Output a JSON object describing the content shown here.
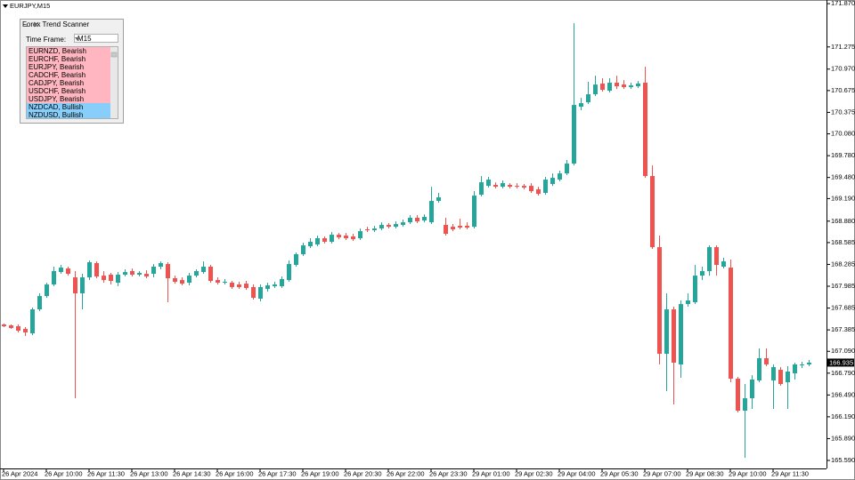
{
  "symbol_label": "EURJPY,M15",
  "chart_data": {
    "type": "candlestick",
    "categories": [
      "26 Apr 2024",
      null,
      null,
      null,
      null,
      null,
      "26 Apr 10:00",
      null,
      null,
      null,
      null,
      null,
      "26 Apr 11:30",
      null,
      null,
      null,
      null,
      null,
      "26 Apr 13:00",
      null,
      null,
      null,
      null,
      null,
      "26 Apr 14:30",
      null,
      null,
      null,
      null,
      null,
      "26 Apr 16:00",
      null,
      null,
      null,
      null,
      null,
      "26 Apr 17:30",
      null,
      null,
      null,
      null,
      null,
      "26 Apr 19:00",
      null,
      null,
      null,
      null,
      null,
      "26 Apr 20:30",
      null,
      null,
      null,
      null,
      null,
      "26 Apr 22:00",
      null,
      null,
      null,
      null,
      null,
      "26 Apr 23:30",
      null,
      null,
      null,
      null,
      null,
      "29 Apr 01:00",
      null,
      null,
      null,
      null,
      null,
      "29 Apr 02:30",
      null,
      null,
      null,
      null,
      null,
      "29 Apr 04:00",
      null,
      null,
      null,
      null,
      null,
      "29 Apr 05:30",
      null,
      null,
      null,
      null,
      null,
      "29 Apr 07:00",
      null,
      null,
      null,
      null,
      null,
      "29 Apr 08:30",
      null,
      null,
      null,
      null,
      null,
      "29 Apr 10:00",
      null,
      null,
      null,
      null,
      null,
      "29 Apr 11:30",
      null,
      null,
      null,
      null,
      null
    ],
    "open": [
      167.459,
      167.447,
      167.435,
      167.398,
      167.337,
      167.667,
      167.85,
      168.009,
      168.18,
      168.229,
      168.107,
      167.887,
      168.107,
      168.303,
      168.131,
      168.144,
      168.034,
      168.144,
      168.193,
      168.144,
      168.156,
      168.156,
      168.254,
      168.29,
      168.095,
      168.07,
      168.034,
      168.131,
      168.18,
      168.254,
      168.07,
      168.034,
      168.034,
      168.009,
      168.021,
      167.973,
      167.814,
      167.948,
      167.985,
      167.985,
      168.07,
      168.278,
      168.425,
      168.535,
      168.559,
      168.645,
      168.596,
      168.693,
      168.681,
      168.669,
      168.645,
      168.767,
      168.755,
      168.779,
      168.828,
      168.803,
      168.828,
      168.864,
      168.926,
      168.889,
      168.864,
      169.158,
      168.828,
      168.803,
      168.816,
      168.816,
      168.803,
      169.243,
      169.365,
      169.378,
      169.353,
      169.378,
      169.365,
      169.365,
      169.365,
      169.317,
      169.268,
      169.39,
      169.451,
      169.536,
      169.671,
      170.453,
      170.514,
      170.624,
      170.771,
      170.673,
      170.783,
      170.758,
      170.722,
      170.734,
      170.783,
      169.5,
      168.522,
      167.056,
      167.667,
      166.91,
      167.74,
      167.765,
      168.131,
      168.193,
      168.522,
      168.254,
      168.241,
      166.714,
      166.274,
      166.445,
      166.69,
      166.995,
      166.69,
      166.836,
      166.665,
      166.787,
      166.91,
      166.91
    ],
    "high": [
      167.472,
      167.459,
      167.459,
      167.423,
      167.692,
      167.887,
      168.034,
      168.254,
      168.278,
      168.254,
      168.193,
      168.156,
      168.339,
      168.327,
      168.193,
      168.168,
      168.18,
      168.217,
      168.229,
      168.193,
      168.205,
      168.29,
      168.327,
      168.315,
      168.131,
      168.107,
      168.168,
      168.217,
      168.327,
      168.278,
      168.107,
      168.083,
      168.058,
      168.046,
      168.058,
      168.009,
      168.009,
      168.034,
      168.046,
      168.119,
      168.339,
      168.449,
      168.584,
      168.645,
      168.681,
      168.669,
      168.73,
      168.718,
      168.718,
      168.706,
      168.779,
      168.803,
      168.816,
      168.864,
      168.852,
      168.877,
      168.901,
      168.962,
      168.962,
      168.974,
      169.353,
      169.268,
      168.926,
      168.84,
      168.913,
      168.864,
      169.292,
      169.5,
      169.488,
      169.414,
      169.439,
      169.402,
      169.402,
      169.39,
      169.402,
      169.353,
      169.488,
      169.536,
      169.573,
      169.72,
      171.601,
      170.575,
      170.795,
      170.88,
      170.844,
      170.844,
      170.88,
      170.819,
      170.783,
      170.807,
      171.003,
      169.646,
      168.681,
      167.887,
      167.704,
      167.789,
      167.887,
      168.278,
      168.254,
      168.547,
      168.547,
      168.376,
      168.351,
      166.739,
      166.641,
      166.763,
      167.13,
      167.13,
      166.91,
      166.873,
      166.885,
      166.934,
      166.946,
      166.971
    ],
    "low": [
      167.423,
      167.398,
      167.35,
      167.301,
      167.313,
      167.643,
      167.826,
      167.985,
      168.156,
      168.131,
      166.445,
      167.667,
      168.07,
      168.095,
      168.034,
      168.009,
      167.985,
      168.119,
      168.119,
      168.119,
      168.095,
      168.107,
      168.217,
      167.765,
      168.021,
      167.997,
      167.997,
      168.107,
      168.156,
      168.034,
      168.009,
      168.009,
      167.948,
      167.948,
      167.936,
      167.802,
      167.777,
      167.911,
      167.96,
      167.96,
      168.046,
      168.254,
      168.4,
      168.51,
      168.535,
      168.571,
      168.571,
      168.632,
      168.62,
      168.608,
      168.62,
      168.73,
      168.73,
      168.755,
      168.779,
      168.779,
      168.803,
      168.84,
      168.852,
      168.864,
      168.84,
      169.133,
      168.681,
      168.742,
      168.767,
      168.767,
      168.779,
      169.219,
      169.341,
      169.329,
      169.329,
      169.329,
      169.329,
      169.317,
      169.268,
      169.231,
      169.243,
      169.365,
      169.427,
      169.512,
      169.646,
      170.404,
      170.49,
      170.599,
      170.661,
      170.648,
      170.697,
      170.697,
      170.697,
      170.709,
      169.475,
      168.498,
      166.91,
      166.543,
      166.36,
      166.726,
      167.704,
      167.74,
      168.07,
      168.131,
      168.131,
      168.229,
      166.665,
      166.25,
      165.627,
      166.299,
      166.665,
      166.885,
      166.299,
      166.616,
      166.299,
      166.702,
      166.861,
      166.885
    ],
    "close": [
      167.435,
      167.411,
      167.374,
      167.35,
      167.667,
      167.85,
      168.009,
      168.193,
      168.241,
      168.156,
      167.887,
      168.107,
      168.315,
      168.119,
      168.07,
      168.058,
      168.144,
      168.18,
      168.144,
      168.168,
      168.119,
      168.254,
      168.303,
      168.095,
      168.046,
      168.021,
      168.131,
      168.193,
      168.254,
      168.058,
      168.034,
      168.046,
      167.973,
      167.973,
      167.96,
      167.826,
      167.973,
      167.997,
      168.009,
      168.083,
      168.29,
      168.425,
      168.547,
      168.596,
      168.645,
      168.596,
      168.693,
      168.657,
      168.645,
      168.632,
      168.742,
      168.755,
      168.779,
      168.828,
      168.803,
      168.84,
      168.864,
      168.926,
      168.877,
      168.938,
      169.158,
      169.207,
      168.706,
      168.767,
      168.791,
      168.791,
      169.231,
      169.414,
      169.451,
      169.353,
      169.402,
      169.353,
      169.353,
      169.341,
      169.292,
      169.255,
      169.451,
      169.475,
      169.536,
      169.671,
      170.477,
      170.502,
      170.624,
      170.758,
      170.685,
      170.783,
      170.734,
      170.722,
      170.746,
      170.771,
      169.5,
      168.522,
      167.056,
      167.667,
      166.934,
      167.74,
      167.789,
      168.131,
      168.193,
      168.522,
      168.278,
      168.327,
      166.714,
      166.274,
      166.445,
      166.702,
      166.995,
      166.91,
      166.873,
      166.641,
      166.812,
      166.91,
      166.91,
      166.935
    ],
    "up_color": "#26a69a",
    "down_color": "#ef5350",
    "ylim": [
      165.48,
      171.92
    ],
    "yticks": [
      {
        "value": 171.87,
        "label": "171.870"
      },
      {
        "value": 171.275,
        "label": "171.275"
      },
      {
        "value": 170.97,
        "label": "170.970"
      },
      {
        "value": 170.675,
        "label": "170.675"
      },
      {
        "value": 170.375,
        "label": "170.375"
      },
      {
        "value": 170.08,
        "label": "170.080"
      },
      {
        "value": 169.78,
        "label": "169.780"
      },
      {
        "value": 169.48,
        "label": "169.480"
      },
      {
        "value": 169.19,
        "label": "169.190"
      },
      {
        "value": 168.88,
        "label": "168.880"
      },
      {
        "value": 168.585,
        "label": "168.585"
      },
      {
        "value": 168.285,
        "label": "168.285"
      },
      {
        "value": 167.985,
        "label": "167.985"
      },
      {
        "value": 167.685,
        "label": "167.685"
      },
      {
        "value": 167.385,
        "label": "167.385"
      },
      {
        "value": 167.09,
        "label": "167.090"
      },
      {
        "value": 166.79,
        "label": "166.790"
      },
      {
        "value": 166.49,
        "label": "166.490"
      },
      {
        "value": 166.19,
        "label": "166.190"
      },
      {
        "value": 165.89,
        "label": "165.890"
      },
      {
        "value": 165.59,
        "label": "165.590"
      }
    ],
    "current_price": {
      "value": 166.935,
      "label": "166.935"
    }
  },
  "scanner": {
    "title": "Forex Trend Scanner",
    "timeframe_label": "Time Frame:",
    "timeframe": "M15",
    "items": [
      {
        "text": "EURNZD, Bearish",
        "color": "#ffb6c1"
      },
      {
        "text": "EURCHF, Bearish",
        "color": "#ffb6c1"
      },
      {
        "text": "EURJPY, Bearish",
        "color": "#ffb6c1"
      },
      {
        "text": "CADCHF, Bearish",
        "color": "#ffb6c1"
      },
      {
        "text": "CADJPY, Bearish",
        "color": "#ffb6c1"
      },
      {
        "text": "USDCHF, Bearish",
        "color": "#ffb6c1"
      },
      {
        "text": "USDJPY, Bearish",
        "color": "#ffb6c1"
      },
      {
        "text": "NZDCAD, Bullish",
        "color": "#87cefa"
      },
      {
        "text": "NZDUSD, Bullish",
        "color": "#87cefa"
      }
    ]
  }
}
